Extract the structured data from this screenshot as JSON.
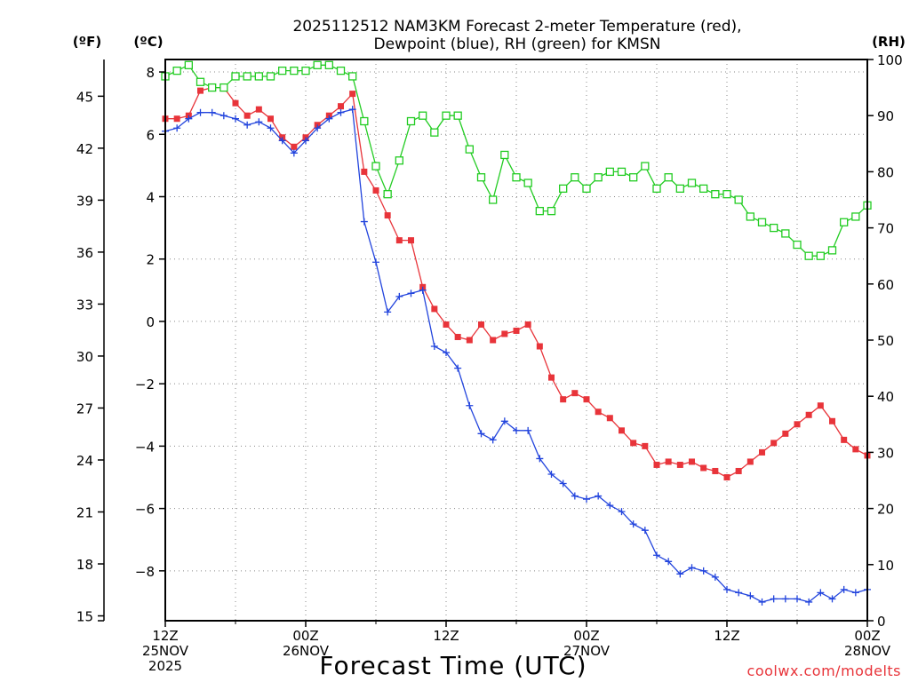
{
  "title_line1": "2025112512 NAM3KM Forecast 2-meter Temperature (red),",
  "title_line2": "Dewpoint (blue), RH (green) for KMSN",
  "units": {
    "fahrenheit": "(ºF)",
    "celsius": "(ºC)",
    "rh": "(RH)"
  },
  "credit": "coolwx.com/modelts",
  "colors": {
    "temp": "#e8343a",
    "dewpoint": "#2244dd",
    "rh": "#22cc22",
    "credit": "#e8343a"
  },
  "chart_data": {
    "type": "line",
    "title": "2025112512 NAM3KM Forecast 2-meter Temperature (red), Dewpoint (blue), RH (green) for KMSN",
    "xlabel": "Forecast Time (UTC)",
    "x_forecast_hours": [
      0,
      1,
      2,
      3,
      4,
      5,
      6,
      7,
      8,
      9,
      10,
      11,
      12,
      13,
      14,
      15,
      16,
      17,
      18,
      19,
      20,
      21,
      22,
      23,
      24,
      25,
      26,
      27,
      28,
      29,
      30,
      31,
      32,
      33,
      34,
      35,
      36,
      37,
      38,
      39,
      40,
      41,
      42,
      43,
      44,
      45,
      46,
      47,
      48,
      49,
      50,
      51,
      52,
      53,
      54,
      55,
      56,
      57,
      58,
      59,
      60
    ],
    "x_ticks": [
      {
        "hour": 0,
        "lines": [
          "12Z",
          "25NOV",
          "2025"
        ]
      },
      {
        "hour": 12,
        "lines": [
          "00Z",
          "26NOV"
        ]
      },
      {
        "hour": 24,
        "lines": [
          "12Z"
        ]
      },
      {
        "hour": 36,
        "lines": [
          "00Z",
          "27NOV"
        ]
      },
      {
        "hour": 48,
        "lines": [
          "12Z"
        ]
      },
      {
        "hour": 60,
        "lines": [
          "00Z",
          "28NOV"
        ]
      }
    ],
    "y_celsius": {
      "range": [
        -9.6,
        8.4
      ],
      "ticks": [
        "8",
        "6",
        "4",
        "2",
        "0",
        "−2",
        "−4",
        "−6",
        "−8"
      ],
      "tick_values": [
        8,
        6,
        4,
        2,
        0,
        -2,
        -4,
        -6,
        -8
      ]
    },
    "y_fahrenheit": {
      "ticks": [
        "45",
        "42",
        "39",
        "36",
        "33",
        "30",
        "27",
        "24",
        "21",
        "18",
        "15"
      ],
      "tick_values": [
        45,
        42,
        39,
        36,
        33,
        30,
        27,
        24,
        21,
        18,
        15
      ]
    },
    "y_rh": {
      "range": [
        0,
        100
      ],
      "ticks": [
        "100",
        "90",
        "80",
        "70",
        "60",
        "50",
        "40",
        "30",
        "20",
        "10",
        "0"
      ],
      "tick_values": [
        100,
        90,
        80,
        70,
        60,
        50,
        40,
        30,
        20,
        10,
        0
      ]
    },
    "series": [
      {
        "name": "2-meter Temperature (°C)",
        "color": "red",
        "marker": "filled-square",
        "values": [
          6.5,
          6.5,
          6.6,
          7.4,
          7.5,
          7.5,
          7.0,
          6.6,
          6.8,
          6.5,
          5.9,
          5.6,
          5.9,
          6.3,
          6.6,
          6.9,
          7.3,
          4.8,
          4.2,
          3.4,
          2.6,
          2.6,
          1.1,
          0.4,
          -0.1,
          -0.5,
          -0.6,
          -0.1,
          -0.6,
          -0.4,
          -0.3,
          -0.1,
          -0.8,
          -1.8,
          -2.5,
          -2.3,
          -2.5,
          -2.9,
          -3.1,
          -3.5,
          -3.9,
          -4.0,
          -4.6,
          -4.5,
          -4.6,
          -4.5,
          -4.7,
          -4.8,
          -5.0,
          -4.8,
          -4.5,
          -4.2,
          -3.9,
          -3.6,
          -3.3,
          -3.0,
          -2.7,
          -3.2,
          -3.8,
          -4.1,
          -4.3
        ]
      },
      {
        "name": "Dewpoint (°C)",
        "color": "blue",
        "marker": "plus",
        "values": [
          6.1,
          6.2,
          6.5,
          6.7,
          6.7,
          6.6,
          6.5,
          6.3,
          6.4,
          6.2,
          5.8,
          5.4,
          5.8,
          6.2,
          6.5,
          6.7,
          6.8,
          3.2,
          1.9,
          0.3,
          0.8,
          0.9,
          1.0,
          -0.8,
          -1.0,
          -1.5,
          -2.7,
          -3.6,
          -3.8,
          -3.2,
          -3.5,
          -3.5,
          -4.4,
          -4.9,
          -5.2,
          -5.6,
          -5.7,
          -5.6,
          -5.9,
          -6.1,
          -6.5,
          -6.7,
          -7.5,
          -7.7,
          -8.1,
          -7.9,
          -8.0,
          -8.2,
          -8.6,
          -8.7,
          -8.8,
          -9.0,
          -8.9,
          -8.9,
          -8.9,
          -9.0,
          -8.7,
          -8.9,
          -8.6,
          -8.7,
          -8.6
        ]
      },
      {
        "name": "RH (%)",
        "color": "green",
        "marker": "open-square",
        "values": [
          97,
          98,
          99,
          96,
          95,
          95,
          97,
          97,
          97,
          97,
          98,
          98,
          98,
          99,
          99,
          98,
          97,
          89,
          81,
          76,
          82,
          89,
          90,
          87,
          90,
          90,
          84,
          79,
          75,
          83,
          79,
          78,
          73,
          73,
          77,
          79,
          77,
          79,
          80,
          80,
          79,
          81,
          77,
          79,
          77,
          78,
          77,
          76,
          76,
          75,
          72,
          71,
          70,
          69,
          67,
          65,
          65,
          66,
          71,
          72,
          74
        ]
      }
    ]
  }
}
